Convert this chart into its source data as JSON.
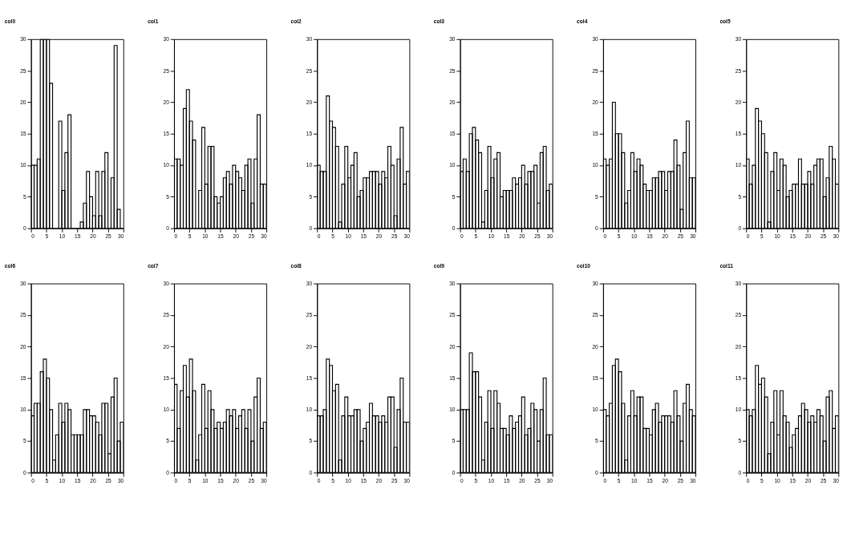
{
  "chart_data": [
    {
      "type": "histogram",
      "title": "col0",
      "color": "#000000",
      "bins": [
        0,
        1,
        2,
        3,
        4,
        5,
        6,
        7,
        8,
        9,
        10,
        11,
        12,
        13,
        14,
        15,
        16,
        17,
        18,
        19,
        20,
        21,
        22,
        23,
        24,
        25,
        26,
        27,
        28,
        29,
        30
      ],
      "values": [
        10,
        10,
        11,
        30,
        30,
        30,
        23,
        0,
        0,
        17,
        6,
        12,
        18,
        0,
        0,
        0,
        1,
        4,
        9,
        5,
        2,
        9,
        2,
        9,
        12,
        0,
        8,
        29,
        3,
        0
      ],
      "xlim": [
        0,
        30
      ],
      "ylim": [
        0,
        30
      ],
      "xticks": [
        0,
        5,
        10,
        15,
        20,
        25,
        30
      ],
      "yticks": [
        0,
        5,
        10,
        15,
        20,
        25,
        30
      ]
    },
    {
      "type": "histogram",
      "title": "col1",
      "color": "#000000",
      "bins": [
        0,
        1,
        2,
        3,
        4,
        5,
        6,
        7,
        8,
        9,
        10,
        11,
        12,
        13,
        14,
        15,
        16,
        17,
        18,
        19,
        20,
        21,
        22,
        23,
        24,
        25,
        26,
        27,
        28,
        29,
        30
      ],
      "values": [
        11,
        11,
        10,
        19,
        22,
        17,
        14,
        0,
        6,
        16,
        7,
        13,
        13,
        5,
        4,
        5,
        8,
        9,
        7,
        10,
        9,
        8,
        6,
        10,
        11,
        4,
        11,
        18,
        7,
        7
      ],
      "xlim": [
        0,
        30
      ],
      "ylim": [
        0,
        30
      ],
      "xticks": [
        0,
        5,
        10,
        15,
        20,
        25,
        30
      ],
      "yticks": [
        0,
        5,
        10,
        15,
        20,
        25,
        30
      ]
    },
    {
      "type": "histogram",
      "title": "col2",
      "color": "#000000",
      "bins": [
        0,
        1,
        2,
        3,
        4,
        5,
        6,
        7,
        8,
        9,
        10,
        11,
        12,
        13,
        14,
        15,
        16,
        17,
        18,
        19,
        20,
        21,
        22,
        23,
        24,
        25,
        26,
        27,
        28,
        29,
        30
      ],
      "values": [
        10,
        9,
        9,
        21,
        17,
        16,
        13,
        1,
        7,
        13,
        8,
        10,
        12,
        5,
        6,
        8,
        8,
        9,
        9,
        9,
        7,
        9,
        8,
        13,
        10,
        2,
        11,
        16,
        7,
        9
      ],
      "xlim": [
        0,
        30
      ],
      "ylim": [
        0,
        30
      ],
      "xticks": [
        0,
        5,
        10,
        15,
        20,
        25,
        30
      ],
      "yticks": [
        0,
        5,
        10,
        15,
        20,
        25,
        30
      ]
    },
    {
      "type": "histogram",
      "title": "col3",
      "color": "#000000",
      "bins": [
        0,
        1,
        2,
        3,
        4,
        5,
        6,
        7,
        8,
        9,
        10,
        11,
        12,
        13,
        14,
        15,
        16,
        17,
        18,
        19,
        20,
        21,
        22,
        23,
        24,
        25,
        26,
        27,
        28,
        29,
        30
      ],
      "values": [
        9,
        11,
        9,
        15,
        16,
        14,
        12,
        1,
        6,
        13,
        8,
        11,
        12,
        5,
        6,
        6,
        6,
        8,
        7,
        8,
        10,
        7,
        9,
        9,
        10,
        4,
        12,
        13,
        6,
        7
      ],
      "xlim": [
        0,
        30
      ],
      "ylim": [
        0,
        30
      ],
      "xticks": [
        0,
        5,
        10,
        15,
        20,
        25,
        30
      ],
      "yticks": [
        0,
        5,
        10,
        15,
        20,
        25,
        30
      ]
    },
    {
      "type": "histogram",
      "title": "col4",
      "color": "#000000",
      "bins": [
        0,
        1,
        2,
        3,
        4,
        5,
        6,
        7,
        8,
        9,
        10,
        11,
        12,
        13,
        14,
        15,
        16,
        17,
        18,
        19,
        20,
        21,
        22,
        23,
        24,
        25,
        26,
        27,
        28,
        29,
        30
      ],
      "values": [
        11,
        10,
        11,
        20,
        15,
        15,
        12,
        4,
        6,
        12,
        9,
        11,
        10,
        7,
        6,
        6,
        8,
        8,
        9,
        9,
        6,
        9,
        9,
        14,
        10,
        3,
        12,
        17,
        8,
        8
      ],
      "xlim": [
        0,
        30
      ],
      "ylim": [
        0,
        30
      ],
      "xticks": [
        0,
        5,
        10,
        15,
        20,
        25,
        30
      ],
      "yticks": [
        0,
        5,
        10,
        15,
        20,
        25,
        30
      ]
    },
    {
      "type": "histogram",
      "title": "col5",
      "color": "#000000",
      "bins": [
        0,
        1,
        2,
        3,
        4,
        5,
        6,
        7,
        8,
        9,
        10,
        11,
        12,
        13,
        14,
        15,
        16,
        17,
        18,
        19,
        20,
        21,
        22,
        23,
        24,
        25,
        26,
        27,
        28,
        29,
        30
      ],
      "values": [
        11,
        7,
        10,
        19,
        17,
        15,
        12,
        1,
        9,
        12,
        6,
        11,
        10,
        5,
        6,
        7,
        7,
        11,
        7,
        7,
        9,
        7,
        10,
        11,
        11,
        5,
        8,
        13,
        11,
        7
      ],
      "xlim": [
        0,
        30
      ],
      "ylim": [
        0,
        30
      ],
      "xticks": [
        0,
        5,
        10,
        15,
        20,
        25,
        30
      ],
      "yticks": [
        0,
        5,
        10,
        15,
        20,
        25,
        30
      ]
    },
    {
      "type": "histogram",
      "title": "col6",
      "color": "#000000",
      "bins": [
        0,
        1,
        2,
        3,
        4,
        5,
        6,
        7,
        8,
        9,
        10,
        11,
        12,
        13,
        14,
        15,
        16,
        17,
        18,
        19,
        20,
        21,
        22,
        23,
        24,
        25,
        26,
        27,
        28,
        29,
        30
      ],
      "values": [
        9,
        11,
        11,
        16,
        18,
        15,
        10,
        2,
        6,
        11,
        8,
        11,
        10,
        6,
        6,
        6,
        6,
        10,
        10,
        9,
        9,
        8,
        6,
        11,
        11,
        3,
        12,
        15,
        5,
        8
      ],
      "xlim": [
        0,
        30
      ],
      "ylim": [
        0,
        30
      ],
      "xticks": [
        0,
        5,
        10,
        15,
        20,
        25,
        30
      ],
      "yticks": [
        0,
        5,
        10,
        15,
        20,
        25,
        30
      ]
    },
    {
      "type": "histogram",
      "title": "col7",
      "color": "#000000",
      "bins": [
        0,
        1,
        2,
        3,
        4,
        5,
        6,
        7,
        8,
        9,
        10,
        11,
        12,
        13,
        14,
        15,
        16,
        17,
        18,
        19,
        20,
        21,
        22,
        23,
        24,
        25,
        26,
        27,
        28,
        29,
        30
      ],
      "values": [
        14,
        7,
        13,
        17,
        12,
        18,
        13,
        2,
        6,
        14,
        7,
        13,
        10,
        7,
        8,
        7,
        8,
        10,
        9,
        10,
        7,
        9,
        10,
        7,
        10,
        5,
        12,
        15,
        7,
        8
      ],
      "xlim": [
        0,
        30
      ],
      "ylim": [
        0,
        30
      ],
      "xticks": [
        0,
        5,
        10,
        15,
        20,
        25,
        30
      ],
      "yticks": [
        0,
        5,
        10,
        15,
        20,
        25,
        30
      ]
    },
    {
      "type": "histogram",
      "title": "col8",
      "color": "#000000",
      "bins": [
        0,
        1,
        2,
        3,
        4,
        5,
        6,
        7,
        8,
        9,
        10,
        11,
        12,
        13,
        14,
        15,
        16,
        17,
        18,
        19,
        20,
        21,
        22,
        23,
        24,
        25,
        26,
        27,
        28,
        29,
        30
      ],
      "values": [
        9,
        9,
        10,
        18,
        17,
        13,
        14,
        2,
        9,
        12,
        9,
        9,
        10,
        10,
        5,
        7,
        8,
        11,
        9,
        9,
        8,
        9,
        8,
        12,
        12,
        4,
        10,
        15,
        8,
        8
      ],
      "xlim": [
        0,
        30
      ],
      "ylim": [
        0,
        30
      ],
      "xticks": [
        0,
        5,
        10,
        15,
        20,
        25,
        30
      ],
      "yticks": [
        0,
        5,
        10,
        15,
        20,
        25,
        30
      ]
    },
    {
      "type": "histogram",
      "title": "col9",
      "color": "#000000",
      "bins": [
        0,
        1,
        2,
        3,
        4,
        5,
        6,
        7,
        8,
        9,
        10,
        11,
        12,
        13,
        14,
        15,
        16,
        17,
        18,
        19,
        20,
        21,
        22,
        23,
        24,
        25,
        26,
        27,
        28,
        29,
        30
      ],
      "values": [
        10,
        10,
        10,
        19,
        16,
        16,
        12,
        2,
        8,
        13,
        7,
        13,
        11,
        7,
        7,
        6,
        9,
        7,
        8,
        9,
        12,
        6,
        7,
        11,
        10,
        5,
        10,
        15,
        6,
        6
      ],
      "xlim": [
        0,
        30
      ],
      "ylim": [
        0,
        30
      ],
      "xticks": [
        0,
        5,
        10,
        15,
        20,
        25,
        30
      ],
      "yticks": [
        0,
        5,
        10,
        15,
        20,
        25,
        30
      ]
    },
    {
      "type": "histogram",
      "title": "col10",
      "color": "#000000",
      "bins": [
        0,
        1,
        2,
        3,
        4,
        5,
        6,
        7,
        8,
        9,
        10,
        11,
        12,
        13,
        14,
        15,
        16,
        17,
        18,
        19,
        20,
        21,
        22,
        23,
        24,
        25,
        26,
        27,
        28,
        29,
        30
      ],
      "values": [
        10,
        9,
        11,
        17,
        18,
        16,
        11,
        2,
        9,
        13,
        9,
        12,
        12,
        7,
        7,
        6,
        10,
        11,
        8,
        9,
        9,
        9,
        8,
        13,
        9,
        5,
        11,
        14,
        10,
        9
      ],
      "xlim": [
        0,
        30
      ],
      "ylim": [
        0,
        30
      ],
      "xticks": [
        0,
        5,
        10,
        15,
        20,
        25,
        30
      ],
      "yticks": [
        0,
        5,
        10,
        15,
        20,
        25,
        30
      ]
    },
    {
      "type": "histogram",
      "title": "col11",
      "color": "#000000",
      "bins": [
        0,
        1,
        2,
        3,
        4,
        5,
        6,
        7,
        8,
        9,
        10,
        11,
        12,
        13,
        14,
        15,
        16,
        17,
        18,
        19,
        20,
        21,
        22,
        23,
        24,
        25,
        26,
        27,
        28,
        29,
        30
      ],
      "values": [
        10,
        9,
        10,
        17,
        14,
        15,
        12,
        3,
        8,
        13,
        6,
        13,
        9,
        8,
        4,
        6,
        7,
        9,
        11,
        10,
        8,
        9,
        8,
        10,
        9,
        5,
        12,
        13,
        7,
        9
      ],
      "xlim": [
        0,
        30
      ],
      "ylim": [
        0,
        30
      ],
      "xticks": [
        0,
        5,
        10,
        15,
        20,
        25,
        30
      ],
      "yticks": [
        0,
        5,
        10,
        15,
        20,
        25,
        30
      ]
    }
  ]
}
